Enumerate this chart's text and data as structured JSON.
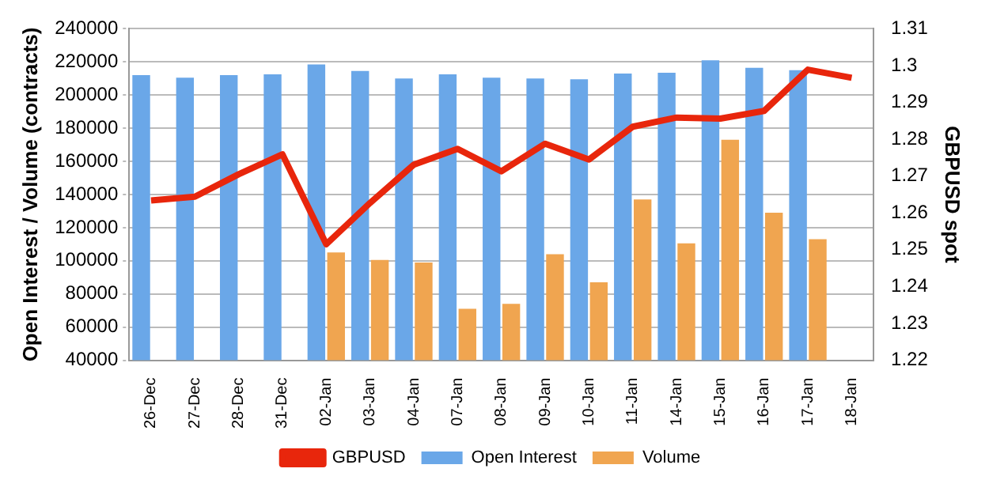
{
  "chart_data": {
    "type": "bar",
    "categories": [
      "26-Dec",
      "27-Dec",
      "28-Dec",
      "31-Dec",
      "02-Jan",
      "03-Jan",
      "04-Jan",
      "07-Jan",
      "08-Jan",
      "09-Jan",
      "10-Jan",
      "11-Jan",
      "14-Jan",
      "15-Jan",
      "16-Jan",
      "17-Jan",
      "18-Jan"
    ],
    "series": [
      {
        "name": "Open Interest",
        "color": "#6aa7e8",
        "values": [
          212000,
          210500,
          212000,
          212500,
          218500,
          214500,
          210000,
          212500,
          210500,
          210000,
          209500,
          213000,
          213500,
          221000,
          216500,
          215000,
          null
        ]
      },
      {
        "name": "Volume",
        "color": "#f0a550",
        "values": [
          null,
          null,
          null,
          null,
          105000,
          100500,
          99000,
          71000,
          74000,
          104000,
          87000,
          137000,
          110500,
          173000,
          129000,
          113000,
          null
        ]
      },
      {
        "name": "GBPUSD",
        "type": "line",
        "axis": "y2",
        "color": "#e8260c",
        "values": [
          1.2634,
          1.2644,
          1.2705,
          1.2759,
          1.2515,
          1.2627,
          1.2731,
          1.2774,
          1.2713,
          1.2788,
          1.2745,
          1.2834,
          1.2859,
          1.2856,
          1.2877,
          1.2989,
          1.2967
        ]
      }
    ],
    "ylabel": "Open Interest / Volume (contracts)",
    "y2label": "GBPUSD spot",
    "ylim": [
      40000,
      240000
    ],
    "yticks": [
      40000,
      60000,
      80000,
      100000,
      120000,
      140000,
      160000,
      180000,
      200000,
      220000,
      240000
    ],
    "y2lim": [
      1.22,
      1.31
    ],
    "y2ticks": [
      1.22,
      1.23,
      1.24,
      1.25,
      1.26,
      1.27,
      1.28,
      1.29,
      {
        "value": 1.3,
        "label": "1.3"
      },
      1.31
    ],
    "grid": "y",
    "legend": "bottom",
    "marker": "none",
    "line_style": "solid"
  }
}
